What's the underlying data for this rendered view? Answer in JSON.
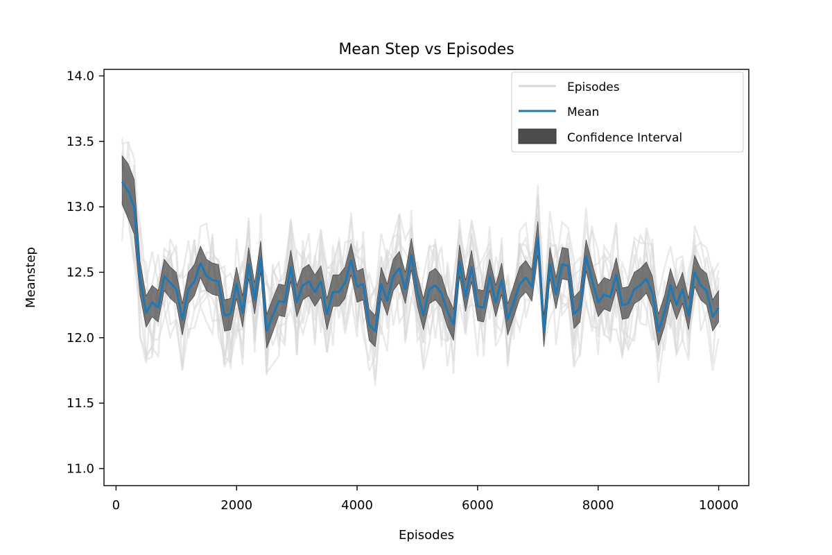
{
  "chart_data": {
    "type": "line",
    "title": "Mean Step vs  Episodes",
    "xlabel": "Episodes",
    "ylabel": "Meanstep",
    "xlim": [
      -200,
      10500
    ],
    "ylim": [
      10.87,
      14.05
    ],
    "xticks": [
      0,
      2000,
      4000,
      6000,
      8000,
      10000
    ],
    "yticks": [
      11.0,
      11.5,
      12.0,
      12.5,
      13.0,
      13.5,
      14.0
    ],
    "xtick_labels": [
      "0",
      "2000",
      "4000",
      "6000",
      "8000",
      "10000"
    ],
    "ytick_labels": [
      "11.0",
      "11.5",
      "12.0",
      "12.5",
      "13.0",
      "13.5",
      "14.0"
    ],
    "grid": false,
    "legend_position": "top-right",
    "legend": [
      {
        "label": "Episodes",
        "kind": "line",
        "color": "#d9d9d9"
      },
      {
        "label": "Mean",
        "kind": "line",
        "color": "#1f77b4"
      },
      {
        "label": "Confidence Interval",
        "kind": "patch",
        "color": "#4d4d4d"
      }
    ],
    "x": [
      100,
      200,
      300,
      400,
      500,
      600,
      700,
      800,
      900,
      1000,
      1100,
      1200,
      1300,
      1400,
      1500,
      1600,
      1700,
      1800,
      1900,
      2000,
      2100,
      2200,
      2300,
      2400,
      2500,
      2600,
      2700,
      2800,
      2900,
      3000,
      3100,
      3200,
      3300,
      3400,
      3500,
      3600,
      3700,
      3800,
      3900,
      4000,
      4100,
      4200,
      4300,
      4400,
      4500,
      4600,
      4700,
      4800,
      4900,
      5000,
      5100,
      5200,
      5300,
      5400,
      5500,
      5600,
      5700,
      5800,
      5900,
      6000,
      6100,
      6200,
      6300,
      6400,
      6500,
      6600,
      6700,
      6800,
      6900,
      7000,
      7100,
      7200,
      7300,
      7400,
      7500,
      7600,
      7700,
      7800,
      7900,
      8000,
      8100,
      8200,
      8300,
      8400,
      8500,
      8600,
      8700,
      8800,
      8900,
      9000,
      9100,
      9200,
      9300,
      9400,
      9500,
      9600,
      9700,
      9800,
      9900,
      10000
    ],
    "series": [
      {
        "name": "Mean",
        "color": "#1f77b4",
        "values": [
          13.19,
          13.12,
          13.0,
          12.45,
          12.19,
          12.27,
          12.23,
          12.47,
          12.42,
          12.37,
          12.14,
          12.37,
          12.43,
          12.57,
          12.47,
          12.44,
          12.43,
          12.17,
          12.18,
          12.41,
          12.19,
          12.56,
          12.29,
          12.61,
          12.05,
          12.17,
          12.28,
          12.27,
          12.54,
          12.27,
          12.4,
          12.43,
          12.35,
          12.43,
          12.18,
          12.35,
          12.35,
          12.42,
          12.59,
          12.39,
          12.41,
          12.1,
          12.05,
          12.41,
          12.28,
          12.47,
          12.53,
          12.37,
          12.63,
          12.35,
          12.17,
          12.37,
          12.4,
          12.34,
          12.2,
          12.1,
          12.58,
          12.31,
          12.54,
          12.24,
          12.23,
          12.47,
          12.27,
          12.44,
          12.14,
          12.27,
          12.41,
          12.46,
          12.39,
          12.76,
          12.04,
          12.56,
          12.33,
          12.56,
          12.55,
          12.18,
          12.23,
          12.62,
          12.44,
          12.27,
          12.33,
          12.31,
          12.48,
          12.25,
          12.26,
          12.37,
          12.4,
          12.45,
          12.34,
          12.05,
          12.19,
          12.4,
          12.25,
          12.37,
          12.17,
          12.5,
          12.4,
          12.36,
          12.16,
          12.23
        ]
      },
      {
        "name": "Confidence Interval",
        "color": "#4d4d4d",
        "lower": [
          13.02,
          12.91,
          12.79,
          12.32,
          12.08,
          12.16,
          12.12,
          12.36,
          12.3,
          12.26,
          12.02,
          12.26,
          12.32,
          12.46,
          12.36,
          12.33,
          12.32,
          12.05,
          12.06,
          12.3,
          12.08,
          12.45,
          12.18,
          12.5,
          11.92,
          12.04,
          12.17,
          12.16,
          12.43,
          12.16,
          12.29,
          12.32,
          12.24,
          12.31,
          12.06,
          12.24,
          12.24,
          12.3,
          12.48,
          12.27,
          12.29,
          11.98,
          11.93,
          12.3,
          12.17,
          12.36,
          12.42,
          12.26,
          12.52,
          12.24,
          12.06,
          12.26,
          12.29,
          12.23,
          12.08,
          11.98,
          12.47,
          12.2,
          12.43,
          12.13,
          12.12,
          12.36,
          12.16,
          12.33,
          12.02,
          12.16,
          12.3,
          12.35,
          12.28,
          12.63,
          11.93,
          12.45,
          12.22,
          12.45,
          12.44,
          12.07,
          12.12,
          12.51,
          12.33,
          12.16,
          12.22,
          12.2,
          12.37,
          12.14,
          12.15,
          12.26,
          12.29,
          12.34,
          12.23,
          11.94,
          12.08,
          12.29,
          12.14,
          12.26,
          12.06,
          12.39,
          12.29,
          12.25,
          12.05,
          12.12
        ],
        "upper": [
          13.39,
          13.33,
          13.21,
          12.58,
          12.32,
          12.4,
          12.36,
          12.6,
          12.54,
          12.5,
          12.26,
          12.5,
          12.56,
          12.7,
          12.6,
          12.57,
          12.56,
          12.29,
          12.3,
          12.54,
          12.32,
          12.69,
          12.42,
          12.74,
          12.18,
          12.3,
          12.41,
          12.4,
          12.67,
          12.4,
          12.53,
          12.56,
          12.48,
          12.55,
          12.3,
          12.48,
          12.48,
          12.54,
          12.72,
          12.51,
          12.53,
          12.22,
          12.17,
          12.54,
          12.41,
          12.6,
          12.66,
          12.5,
          12.76,
          12.48,
          12.3,
          12.5,
          12.53,
          12.47,
          12.32,
          12.22,
          12.71,
          12.44,
          12.67,
          12.37,
          12.36,
          12.6,
          12.4,
          12.57,
          12.26,
          12.4,
          12.54,
          12.59,
          12.52,
          12.89,
          12.17,
          12.69,
          12.46,
          12.69,
          12.68,
          12.31,
          12.36,
          12.75,
          12.57,
          12.4,
          12.46,
          12.44,
          12.61,
          12.38,
          12.39,
          12.5,
          12.53,
          12.58,
          12.47,
          12.18,
          12.32,
          12.53,
          12.38,
          12.5,
          12.3,
          12.63,
          12.53,
          12.49,
          12.29,
          12.36
        ]
      }
    ],
    "episodes_series_count": 10,
    "episodes_color": "#d9d9d9"
  }
}
